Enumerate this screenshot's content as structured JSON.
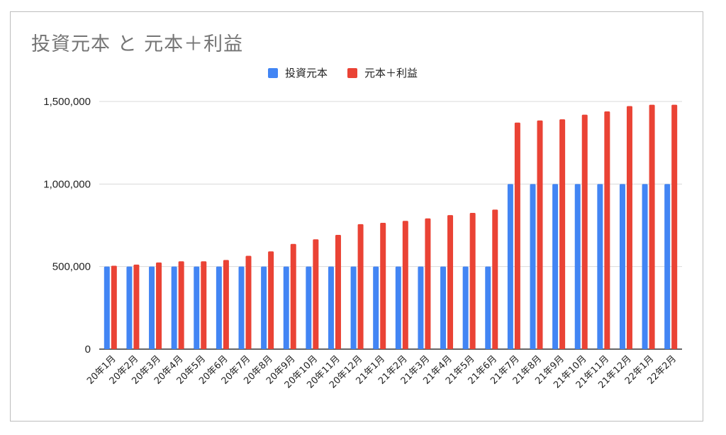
{
  "chart_data": {
    "type": "bar",
    "title": "投資元本 と 元本＋利益",
    "categories": [
      "20年1月",
      "20年2月",
      "20年3月",
      "20年4月",
      "20年5月",
      "20年6月",
      "20年7月",
      "20年8月",
      "20年9月",
      "20年10月",
      "20年11月",
      "20年12月",
      "21年1月",
      "21年2月",
      "21年3月",
      "21年4月",
      "21年5月",
      "21年6月",
      "21年7月",
      "21年8月",
      "21年9月",
      "21年10月",
      "21年11月",
      "21年12月",
      "22年1月",
      "22年2月"
    ],
    "series": [
      {
        "name": "投資元本",
        "color": "#4285f4",
        "values": [
          500000,
          500000,
          500000,
          500000,
          500000,
          500000,
          500000,
          500000,
          500000,
          500000,
          500000,
          500000,
          500000,
          500000,
          500000,
          500000,
          500000,
          500000,
          1000000,
          1000000,
          1000000,
          1000000,
          1000000,
          1000000,
          1000000,
          1000000
        ]
      },
      {
        "name": "元本＋利益",
        "color": "#ea4335",
        "values": [
          505000,
          512000,
          525000,
          532000,
          532000,
          540000,
          565000,
          592000,
          637000,
          665000,
          692000,
          757000,
          765000,
          777000,
          792000,
          812000,
          825000,
          845000,
          1372000,
          1385000,
          1392000,
          1420000,
          1440000,
          1472000,
          1480000,
          1480000
        ]
      }
    ],
    "ylim": [
      0,
      1500000
    ],
    "yticks": [
      0,
      500000,
      1000000,
      1500000
    ],
    "ytick_labels": [
      "0",
      "500,000",
      "1,000,000",
      "1,500,000"
    ],
    "grid": true,
    "legend": "top-center",
    "xlabel": "",
    "ylabel": ""
  }
}
